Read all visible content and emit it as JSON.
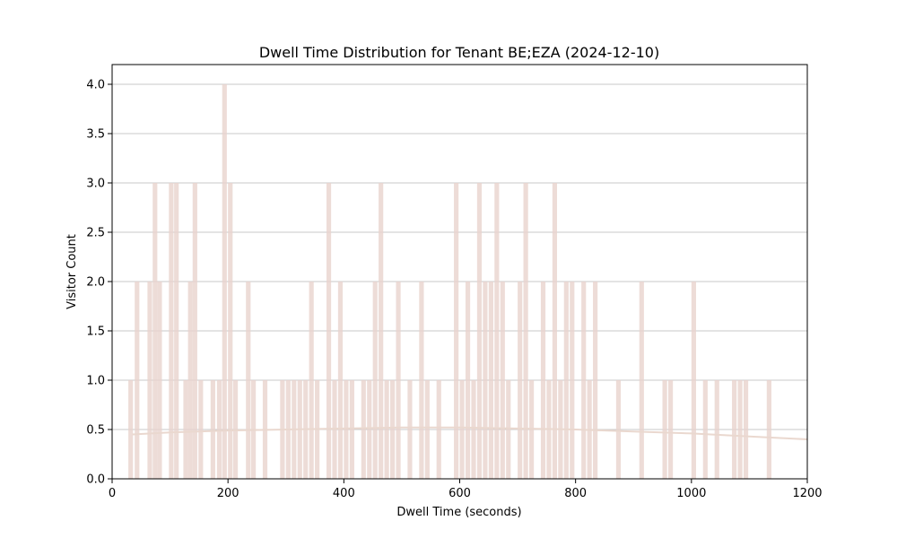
{
  "chart_data": {
    "type": "bar",
    "title": "Dwell Time Distribution for Tenant BE;EZA (2024-12-10)",
    "xlabel": "Dwell Time (seconds)",
    "ylabel": "Visitor Count",
    "xlim": [
      0,
      1200
    ],
    "ylim": [
      0,
      4.2
    ],
    "xticks": [
      0,
      200,
      400,
      600,
      800,
      1000,
      1200
    ],
    "xtick_labels": [
      "0",
      "200",
      "400",
      "600",
      "800",
      "1000",
      "1200"
    ],
    "yticks": [
      0,
      0.5,
      1.0,
      1.5,
      2.0,
      2.5,
      3.0,
      3.5,
      4.0
    ],
    "ytick_labels": [
      "0.0",
      "0.5",
      "1.0",
      "1.5",
      "2.0",
      "2.5",
      "3.0",
      "3.5",
      "4.0"
    ],
    "grid": "horizontal",
    "bar_width": 8,
    "colors": {
      "bar": "#e8d3cd",
      "density": "#ead8cf",
      "grid": "#c8c8c8"
    },
    "bars": [
      {
        "x": 32,
        "y": 1
      },
      {
        "x": 43,
        "y": 2
      },
      {
        "x": 65,
        "y": 2
      },
      {
        "x": 74,
        "y": 3
      },
      {
        "x": 82,
        "y": 2
      },
      {
        "x": 102,
        "y": 3
      },
      {
        "x": 111,
        "y": 3
      },
      {
        "x": 127,
        "y": 1
      },
      {
        "x": 135,
        "y": 2
      },
      {
        "x": 143,
        "y": 3
      },
      {
        "x": 153,
        "y": 1
      },
      {
        "x": 174,
        "y": 1
      },
      {
        "x": 185,
        "y": 1
      },
      {
        "x": 194,
        "y": 4
      },
      {
        "x": 204,
        "y": 3
      },
      {
        "x": 213,
        "y": 1
      },
      {
        "x": 235,
        "y": 2
      },
      {
        "x": 244,
        "y": 1
      },
      {
        "x": 264,
        "y": 1
      },
      {
        "x": 294,
        "y": 1
      },
      {
        "x": 304,
        "y": 1
      },
      {
        "x": 314,
        "y": 1
      },
      {
        "x": 324,
        "y": 1
      },
      {
        "x": 334,
        "y": 1
      },
      {
        "x": 344,
        "y": 2
      },
      {
        "x": 354,
        "y": 1
      },
      {
        "x": 374,
        "y": 3
      },
      {
        "x": 384,
        "y": 1
      },
      {
        "x": 394,
        "y": 2
      },
      {
        "x": 404,
        "y": 1
      },
      {
        "x": 414,
        "y": 1
      },
      {
        "x": 434,
        "y": 1
      },
      {
        "x": 444,
        "y": 1
      },
      {
        "x": 454,
        "y": 2
      },
      {
        "x": 464,
        "y": 3
      },
      {
        "x": 474,
        "y": 1
      },
      {
        "x": 484,
        "y": 1
      },
      {
        "x": 494,
        "y": 2
      },
      {
        "x": 514,
        "y": 1
      },
      {
        "x": 534,
        "y": 2
      },
      {
        "x": 544,
        "y": 1
      },
      {
        "x": 564,
        "y": 1
      },
      {
        "x": 594,
        "y": 3
      },
      {
        "x": 604,
        "y": 1
      },
      {
        "x": 614,
        "y": 2
      },
      {
        "x": 624,
        "y": 1
      },
      {
        "x": 634,
        "y": 3
      },
      {
        "x": 644,
        "y": 2
      },
      {
        "x": 654,
        "y": 2
      },
      {
        "x": 664,
        "y": 3
      },
      {
        "x": 674,
        "y": 2
      },
      {
        "x": 684,
        "y": 1
      },
      {
        "x": 704,
        "y": 2
      },
      {
        "x": 714,
        "y": 3
      },
      {
        "x": 724,
        "y": 1
      },
      {
        "x": 744,
        "y": 2
      },
      {
        "x": 754,
        "y": 1
      },
      {
        "x": 764,
        "y": 3
      },
      {
        "x": 774,
        "y": 1
      },
      {
        "x": 784,
        "y": 2
      },
      {
        "x": 794,
        "y": 2
      },
      {
        "x": 814,
        "y": 2
      },
      {
        "x": 824,
        "y": 1
      },
      {
        "x": 834,
        "y": 2
      },
      {
        "x": 874,
        "y": 1
      },
      {
        "x": 914,
        "y": 2
      },
      {
        "x": 954,
        "y": 1
      },
      {
        "x": 964,
        "y": 1
      },
      {
        "x": 1004,
        "y": 2
      },
      {
        "x": 1024,
        "y": 1
      },
      {
        "x": 1044,
        "y": 1
      },
      {
        "x": 1074,
        "y": 1
      },
      {
        "x": 1084,
        "y": 1
      },
      {
        "x": 1094,
        "y": 1
      },
      {
        "x": 1134,
        "y": 1
      }
    ],
    "density_curve": [
      {
        "x": 35,
        "y": 0.45
      },
      {
        "x": 100,
        "y": 0.47
      },
      {
        "x": 200,
        "y": 0.49
      },
      {
        "x": 300,
        "y": 0.5
      },
      {
        "x": 400,
        "y": 0.51
      },
      {
        "x": 500,
        "y": 0.52
      },
      {
        "x": 600,
        "y": 0.52
      },
      {
        "x": 700,
        "y": 0.51
      },
      {
        "x": 800,
        "y": 0.5
      },
      {
        "x": 900,
        "y": 0.48
      },
      {
        "x": 1000,
        "y": 0.46
      },
      {
        "x": 1100,
        "y": 0.43
      },
      {
        "x": 1200,
        "y": 0.4
      }
    ]
  }
}
